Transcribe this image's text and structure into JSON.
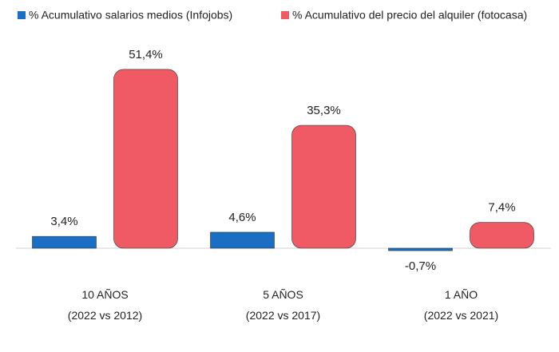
{
  "chart_data": {
    "type": "bar",
    "categories": [
      "10 AÑOS\n(2022 vs 2012)",
      "5 AÑOS\n(2022 vs 2017)",
      "1 AÑO\n(2022 vs 2021)"
    ],
    "series": [
      {
        "name": "% Acumulativo salarios medios (Infojobs)",
        "color": "#1a6fc4",
        "values": [
          3.4,
          4.6,
          -0.7
        ],
        "value_labels": [
          "3,4%",
          "4,6%",
          "-0,7%"
        ]
      },
      {
        "name": "% Acumulativo del precio del alquiler (fotocasa)",
        "color": "#ef5a64",
        "values": [
          51.4,
          35.3,
          7.4
        ],
        "value_labels": [
          "51,4%",
          "35,3%",
          "7,4%"
        ]
      }
    ],
    "legend": "top"
  }
}
